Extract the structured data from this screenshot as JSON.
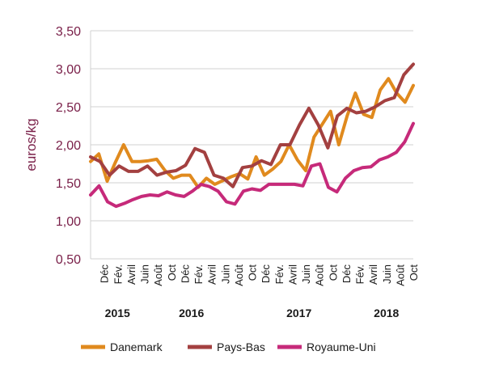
{
  "chart_data": {
    "type": "line",
    "title": "",
    "xlabel": "",
    "ylabel": "euros/kg",
    "ylim": [
      0.5,
      3.5
    ],
    "yticks": [
      "0,50",
      "1,00",
      "1,50",
      "2,00",
      "2,50",
      "3,00",
      "3,50"
    ],
    "ytick_values": [
      0.5,
      1.0,
      1.5,
      2.0,
      2.5,
      3.0,
      3.5
    ],
    "grid": "horizontal",
    "legend_position": "bottom",
    "x_period": "Oct 2014 - Oct 2018 (monthly)",
    "x_tick_labels": [
      {
        "label": "Déc",
        "index": 2
      },
      {
        "label": "Fév.",
        "index": 4
      },
      {
        "label": "Avril",
        "index": 6
      },
      {
        "label": "Juin",
        "index": 8
      },
      {
        "label": "Août",
        "index": 10
      },
      {
        "label": "Oct",
        "index": 12
      },
      {
        "label": "Déc",
        "index": 14
      },
      {
        "label": "Fév.",
        "index": 16
      },
      {
        "label": "Avril",
        "index": 18
      },
      {
        "label": "Juin",
        "index": 20
      },
      {
        "label": "Août",
        "index": 22
      },
      {
        "label": "Oct",
        "index": 24
      },
      {
        "label": "Déc",
        "index": 26
      },
      {
        "label": "Fév.",
        "index": 28
      },
      {
        "label": "Avril",
        "index": 30
      },
      {
        "label": "Juin",
        "index": 32
      },
      {
        "label": "Août",
        "index": 34
      },
      {
        "label": "Oct",
        "index": 36
      },
      {
        "label": "Déc",
        "index": 38
      },
      {
        "label": "Fév.",
        "index": 40
      },
      {
        "label": "Avril",
        "index": 42
      },
      {
        "label": "Juin",
        "index": 44
      },
      {
        "label": "Août",
        "index": 46
      },
      {
        "label": "Oct",
        "index": 48
      }
    ],
    "year_labels": [
      {
        "label": "2015",
        "index": 4
      },
      {
        "label": "2016",
        "index": 15
      },
      {
        "label": "2017",
        "index": 31
      },
      {
        "label": "2018",
        "index": 44
      }
    ],
    "series": [
      {
        "name": "Danemark",
        "color": "#e08a1e",
        "values": [
          1.78,
          1.88,
          1.52,
          1.77,
          2.0,
          1.78,
          1.78,
          1.79,
          1.81,
          1.66,
          1.56,
          1.6,
          1.6,
          1.44,
          1.56,
          1.48,
          1.53,
          1.58,
          1.62,
          1.55,
          1.84,
          1.6,
          1.68,
          1.78,
          2.0,
          1.8,
          1.66,
          2.1,
          2.27,
          2.44,
          2.0,
          2.38,
          2.68,
          2.4,
          2.36,
          2.72,
          2.87,
          2.68,
          2.56,
          2.78
        ]
      },
      {
        "name": "Pays-Bas",
        "color": "#a34040",
        "values": [
          1.84,
          1.78,
          1.6,
          1.72,
          1.65,
          1.65,
          1.72,
          1.6,
          1.64,
          1.66,
          1.73,
          1.95,
          1.9,
          1.6,
          1.56,
          1.45,
          1.7,
          1.72,
          1.79,
          1.74,
          2.0,
          2.0,
          2.26,
          2.48,
          2.26,
          1.96,
          2.38,
          2.48,
          2.42,
          2.44,
          2.5,
          2.58,
          2.62,
          2.92,
          3.06
        ]
      },
      {
        "name": "Royaume-Uni",
        "color": "#c62a7a",
        "values": [
          1.34,
          1.46,
          1.25,
          1.19,
          1.23,
          1.28,
          1.32,
          1.34,
          1.33,
          1.38,
          1.34,
          1.32,
          1.39,
          1.48,
          1.45,
          1.39,
          1.25,
          1.22,
          1.39,
          1.42,
          1.4,
          1.48,
          1.48,
          1.48,
          1.48,
          1.46,
          1.72,
          1.75,
          1.44,
          1.38,
          1.56,
          1.66,
          1.7,
          1.71,
          1.8,
          1.84,
          1.9,
          2.04,
          2.28
        ]
      }
    ]
  }
}
